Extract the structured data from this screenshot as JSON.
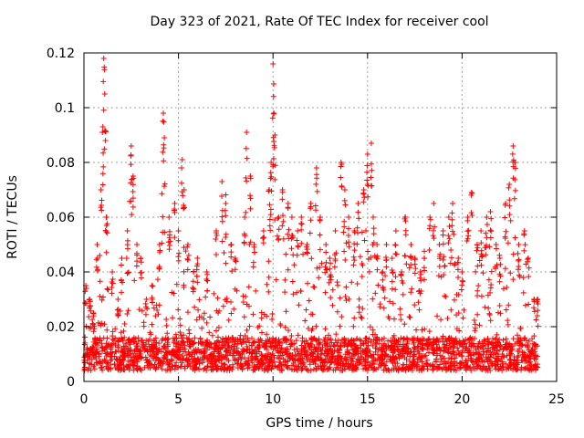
{
  "chart_data": {
    "type": "scatter",
    "title": "Day 323 of 2021, Rate Of TEC Index for receiver cool",
    "xlabel": "GPS time / hours",
    "ylabel": "ROTI / TECUs",
    "xlim": [
      0,
      25
    ],
    "ylim": [
      0,
      0.12
    ],
    "xticks": [
      0,
      5,
      10,
      15,
      20,
      25
    ],
    "yticks": [
      0,
      0.02,
      0.04,
      0.06,
      0.08,
      0.1,
      0.12
    ],
    "xtick_labels": [
      "0",
      "5",
      "10",
      "15",
      "20",
      "25"
    ],
    "ytick_labels": [
      "0",
      "0.02",
      "0.04",
      "0.06",
      "0.08",
      "0.1",
      "0.12"
    ],
    "grid": true,
    "marker": "+",
    "color": "#ff0000",
    "series": [
      {
        "name": "ROTI",
        "x": [
          0.1,
          0.3,
          0.5,
          0.7,
          0.9,
          1.0,
          1.05,
          1.1,
          1.2,
          1.5,
          1.8,
          2.0,
          2.3,
          2.5,
          2.6,
          2.8,
          3.0,
          3.3,
          3.6,
          4.0,
          4.2,
          4.25,
          4.5,
          4.8,
          5.0,
          5.2,
          5.3,
          5.5,
          5.8,
          6.0,
          6.5,
          7.0,
          7.3,
          7.5,
          7.8,
          8.0,
          8.5,
          8.6,
          8.8,
          9.0,
          9.5,
          9.8,
          9.9,
          10.0,
          10.05,
          10.1,
          10.3,
          10.5,
          10.8,
          11.0,
          11.3,
          11.5,
          11.8,
          12.0,
          12.3,
          12.5,
          12.8,
          13.0,
          13.3,
          13.6,
          13.8,
          14.0,
          14.3,
          14.5,
          14.8,
          15.0,
          15.2,
          15.3,
          15.5,
          15.8,
          16.0,
          16.3,
          16.5,
          16.8,
          17.0,
          17.3,
          17.5,
          17.8,
          18.0,
          18.3,
          18.5,
          18.8,
          19.0,
          19.3,
          19.5,
          19.8,
          20.0,
          20.3,
          20.5,
          20.8,
          21.0,
          21.3,
          21.5,
          21.8,
          22.0,
          22.3,
          22.5,
          22.7,
          22.8,
          23.0,
          23.3,
          23.5,
          23.8,
          24.0
        ],
        "y": [
          0.035,
          0.03,
          0.025,
          0.05,
          0.07,
          0.093,
          0.118,
          0.105,
          0.06,
          0.04,
          0.03,
          0.045,
          0.055,
          0.086,
          0.075,
          0.05,
          0.045,
          0.03,
          0.035,
          0.05,
          0.098,
          0.089,
          0.06,
          0.065,
          0.055,
          0.081,
          0.07,
          0.05,
          0.04,
          0.045,
          0.04,
          0.055,
          0.073,
          0.065,
          0.05,
          0.045,
          0.06,
          0.091,
          0.075,
          0.05,
          0.055,
          0.07,
          0.08,
          0.116,
          0.098,
          0.09,
          0.06,
          0.07,
          0.065,
          0.06,
          0.055,
          0.06,
          0.05,
          0.065,
          0.078,
          0.06,
          0.05,
          0.045,
          0.055,
          0.08,
          0.07,
          0.06,
          0.055,
          0.065,
          0.07,
          0.083,
          0.087,
          0.06,
          0.05,
          0.04,
          0.05,
          0.045,
          0.055,
          0.04,
          0.06,
          0.05,
          0.045,
          0.04,
          0.045,
          0.06,
          0.065,
          0.05,
          0.055,
          0.06,
          0.065,
          0.045,
          0.04,
          0.06,
          0.069,
          0.05,
          0.055,
          0.06,
          0.062,
          0.05,
          0.045,
          0.065,
          0.072,
          0.086,
          0.08,
          0.05,
          0.055,
          0.045,
          0.03,
          0.03
        ]
      }
    ]
  }
}
